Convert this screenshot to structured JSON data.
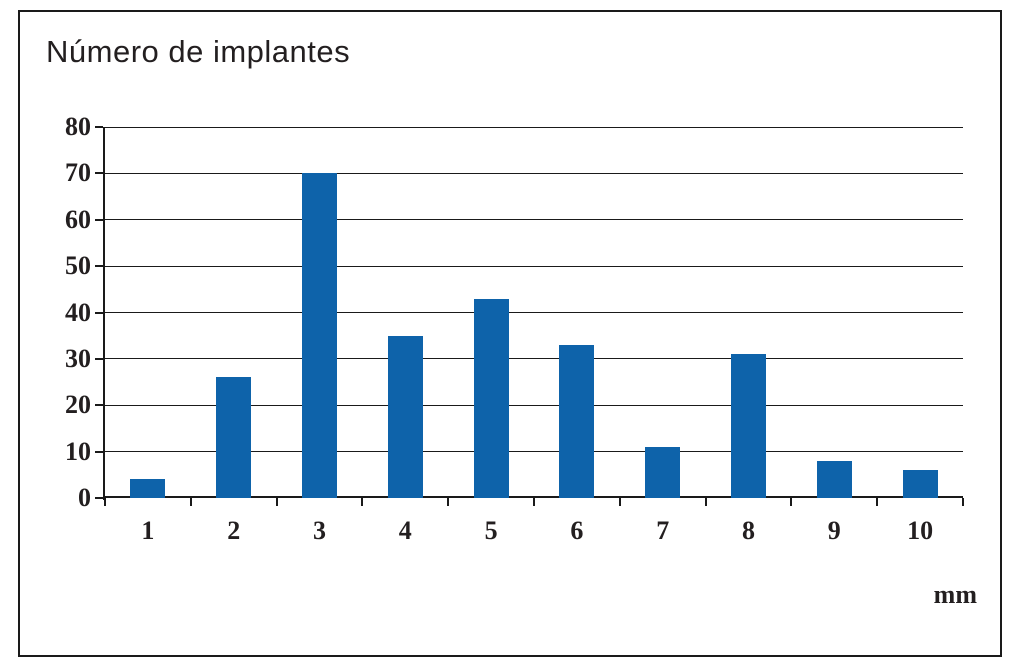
{
  "page": {
    "background": "#ffffff",
    "frame_border_color": "#1a1a1a"
  },
  "chart_data": {
    "type": "bar",
    "title": "Número de implantes",
    "categories": [
      "1",
      "2",
      "3",
      "4",
      "5",
      "6",
      "7",
      "8",
      "9",
      "10"
    ],
    "values": [
      4,
      26,
      70,
      35,
      43,
      33,
      11,
      31,
      8,
      6
    ],
    "xlabel": "mm",
    "ylabel": "",
    "ylim": [
      0,
      80
    ],
    "yticks": [
      0,
      10,
      20,
      30,
      40,
      50,
      60,
      70,
      80
    ],
    "grid": true,
    "legend": false,
    "bar_color": "#0e63aa",
    "axis_color": "#1a1a1a",
    "text_color": "#231f20"
  }
}
